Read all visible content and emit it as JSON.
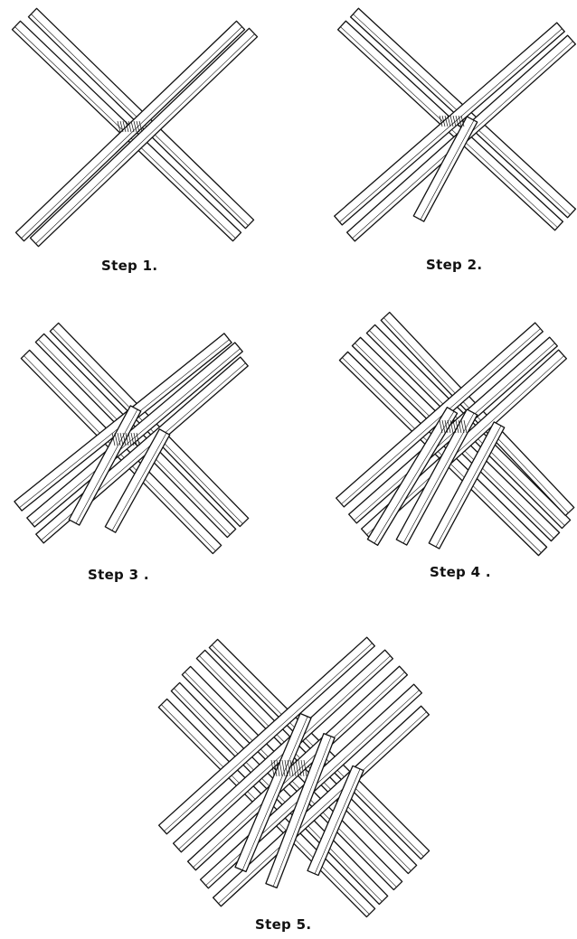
{
  "steps": [
    {
      "id": 1,
      "label": "Step 1."
    },
    {
      "id": 2,
      "label": "Step 2."
    },
    {
      "id": 3,
      "label": "Step 3 ."
    },
    {
      "id": 4,
      "label": "Step 4 ."
    },
    {
      "id": 5,
      "label": "Step 5."
    }
  ],
  "colors": {
    "ink": "#111111",
    "paper": "#ffffff"
  }
}
